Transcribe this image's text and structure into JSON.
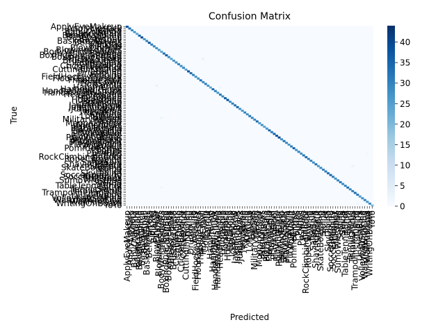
{
  "chart_data": {
    "type": "heatmap",
    "title": "Confusion Matrix",
    "xlabel": "Predicted",
    "ylabel": "True",
    "n_classes": 101,
    "colormap": "Blues",
    "vmin": 0,
    "vmax": 44,
    "colorbar_ticks": [
      0,
      5,
      10,
      15,
      20,
      25,
      30,
      35,
      40
    ],
    "grid": false,
    "labels": [
      "ApplyEyeMakeup",
      "ApplyLipstick",
      "Archery",
      "BabyCrawling",
      "BalanceBeam",
      "BandMarching",
      "BaseballPitch",
      "Basketball",
      "BasketballDunk",
      "BenchPress",
      "Biking",
      "Billiards",
      "BlowDryHair",
      "BlowingCandles",
      "BodyWeightSquats",
      "Bowling",
      "BoxingPunchingBag",
      "BoxingSpeedBag",
      "BreastStroke",
      "BrushingTeeth",
      "CleanAndJerk",
      "CliffDiving",
      "CricketBowling",
      "CricketShot",
      "CuttingInKitchen",
      "Diving",
      "Drumming",
      "Fencing",
      "FieldHockeyPenalty",
      "FloorGymnastics",
      "FrisbeeCatch",
      "FrontCrawl",
      "GolfSwing",
      "Haircut",
      "Hammering",
      "HammerThrow",
      "HandstandPushups",
      "HandstandWalking",
      "HeadMassage",
      "HighJump",
      "HorseRace",
      "HorseRiding",
      "HulaHoop",
      "IceDancing",
      "JavelinThrow",
      "JugglingBalls",
      "JumpingJack",
      "JumpRope",
      "Kayaking",
      "Knitting",
      "LongJump",
      "Lunges",
      "MilitaryParade",
      "Mixing",
      "MoppingFloor",
      "Nunchucks",
      "ParallelBars",
      "PizzaTossing",
      "PlayingCello",
      "PlayingDaf",
      "PlayingDhol",
      "PlayingFlute",
      "PlayingGuitar",
      "PlayingPiano",
      "PlayingSitar",
      "PlayingTabla",
      "PlayingViolin",
      "PoleVault",
      "PommelHorse",
      "PullUps",
      "Punch",
      "PushUps",
      "Rafting",
      "RockClimbingIndoor",
      "RopeClimbing",
      "Rowing",
      "SalsaSpin",
      "ShavingBeard",
      "Shotput",
      "SkateBoarding",
      "Skiing",
      "Skijet",
      "SkyDiving",
      "SoccerJuggling",
      "SoccerPenalty",
      "StillRings",
      "SumoWrestling",
      "Surfing",
      "Swing",
      "TableTennisShot",
      "TaiChi",
      "TennisSwing",
      "ThrowDiscus",
      "TrampolineJumping",
      "Typing",
      "UnevenBars",
      "VolleyballSpiking",
      "WalkingWithDog",
      "WallPushups",
      "WritingOnBoard",
      "YoYo"
    ],
    "diagonal": [
      38,
      34,
      29,
      27,
      24,
      36,
      40,
      27,
      30,
      38,
      31,
      30,
      28,
      26,
      24,
      33,
      37,
      28,
      25,
      27,
      28,
      30,
      28,
      29,
      25,
      38,
      34,
      31,
      27,
      28,
      33,
      29,
      31,
      27,
      24,
      33,
      31,
      26,
      32,
      29,
      36,
      39,
      28,
      31,
      32,
      35,
      27,
      26,
      30,
      28,
      32,
      30,
      29,
      34,
      26,
      28,
      25,
      27,
      35,
      31,
      36,
      37,
      40,
      28,
      33,
      29,
      27,
      31,
      35,
      28,
      30,
      29,
      32,
      34,
      31,
      30,
      28,
      33,
      26,
      29,
      30,
      31,
      33,
      35,
      31,
      28,
      30,
      32,
      29,
      30,
      33,
      29,
      31,
      34,
      32,
      26,
      28,
      30,
      27,
      29,
      20
    ],
    "off_diagonal": [
      {
        "true": "ApplyEyeMakeup",
        "predicted": "ApplyLipstick",
        "value": 4
      },
      {
        "true": "ApplyLipstick",
        "predicted": "ApplyEyeMakeup",
        "value": 3
      },
      {
        "true": "Basketball",
        "predicted": "BasketballDunk",
        "value": 2
      },
      {
        "true": "BoxingPunchingBag",
        "predicted": "BoxingSpeedBag",
        "value": 2
      },
      {
        "true": "BreastStroke",
        "predicted": "FrontCrawl",
        "value": 3
      },
      {
        "true": "CricketBowling",
        "predicted": "CricketShot",
        "value": 4
      },
      {
        "true": "CricketShot",
        "predicted": "CricketBowling",
        "value": 3
      },
      {
        "true": "Haircut",
        "predicted": "BlowDryHair",
        "value": 3
      },
      {
        "true": "Hammering",
        "predicted": "HeadMassage",
        "value": 2
      },
      {
        "true": "HandstandPushups",
        "predicted": "HandstandWalking",
        "value": 2
      },
      {
        "true": "HorseRace",
        "predicted": "HorseRiding",
        "value": 2
      },
      {
        "true": "JumpingJack",
        "predicted": "JumpRope",
        "value": 2
      },
      {
        "true": "Lunges",
        "predicted": "BodyWeightSquats",
        "value": 3
      },
      {
        "true": "PlayingDaf",
        "predicted": "PlayingDhol",
        "value": 2
      },
      {
        "true": "PushUps",
        "predicted": "WallPushups",
        "value": 2
      },
      {
        "true": "Shotput",
        "predicted": "ThrowDiscus",
        "value": 3
      },
      {
        "true": "Skiing",
        "predicted": "Skijet",
        "value": 2
      },
      {
        "true": "SoccerJuggling",
        "predicted": "SoccerPenalty",
        "value": 2
      },
      {
        "true": "TableTennisShot",
        "predicted": "TennisSwing",
        "value": 2
      },
      {
        "true": "TaiChi",
        "predicted": "BodyWeightSquats",
        "value": 2
      },
      {
        "true": "WritingOnBoard",
        "predicted": "Typing",
        "value": 2
      }
    ]
  }
}
